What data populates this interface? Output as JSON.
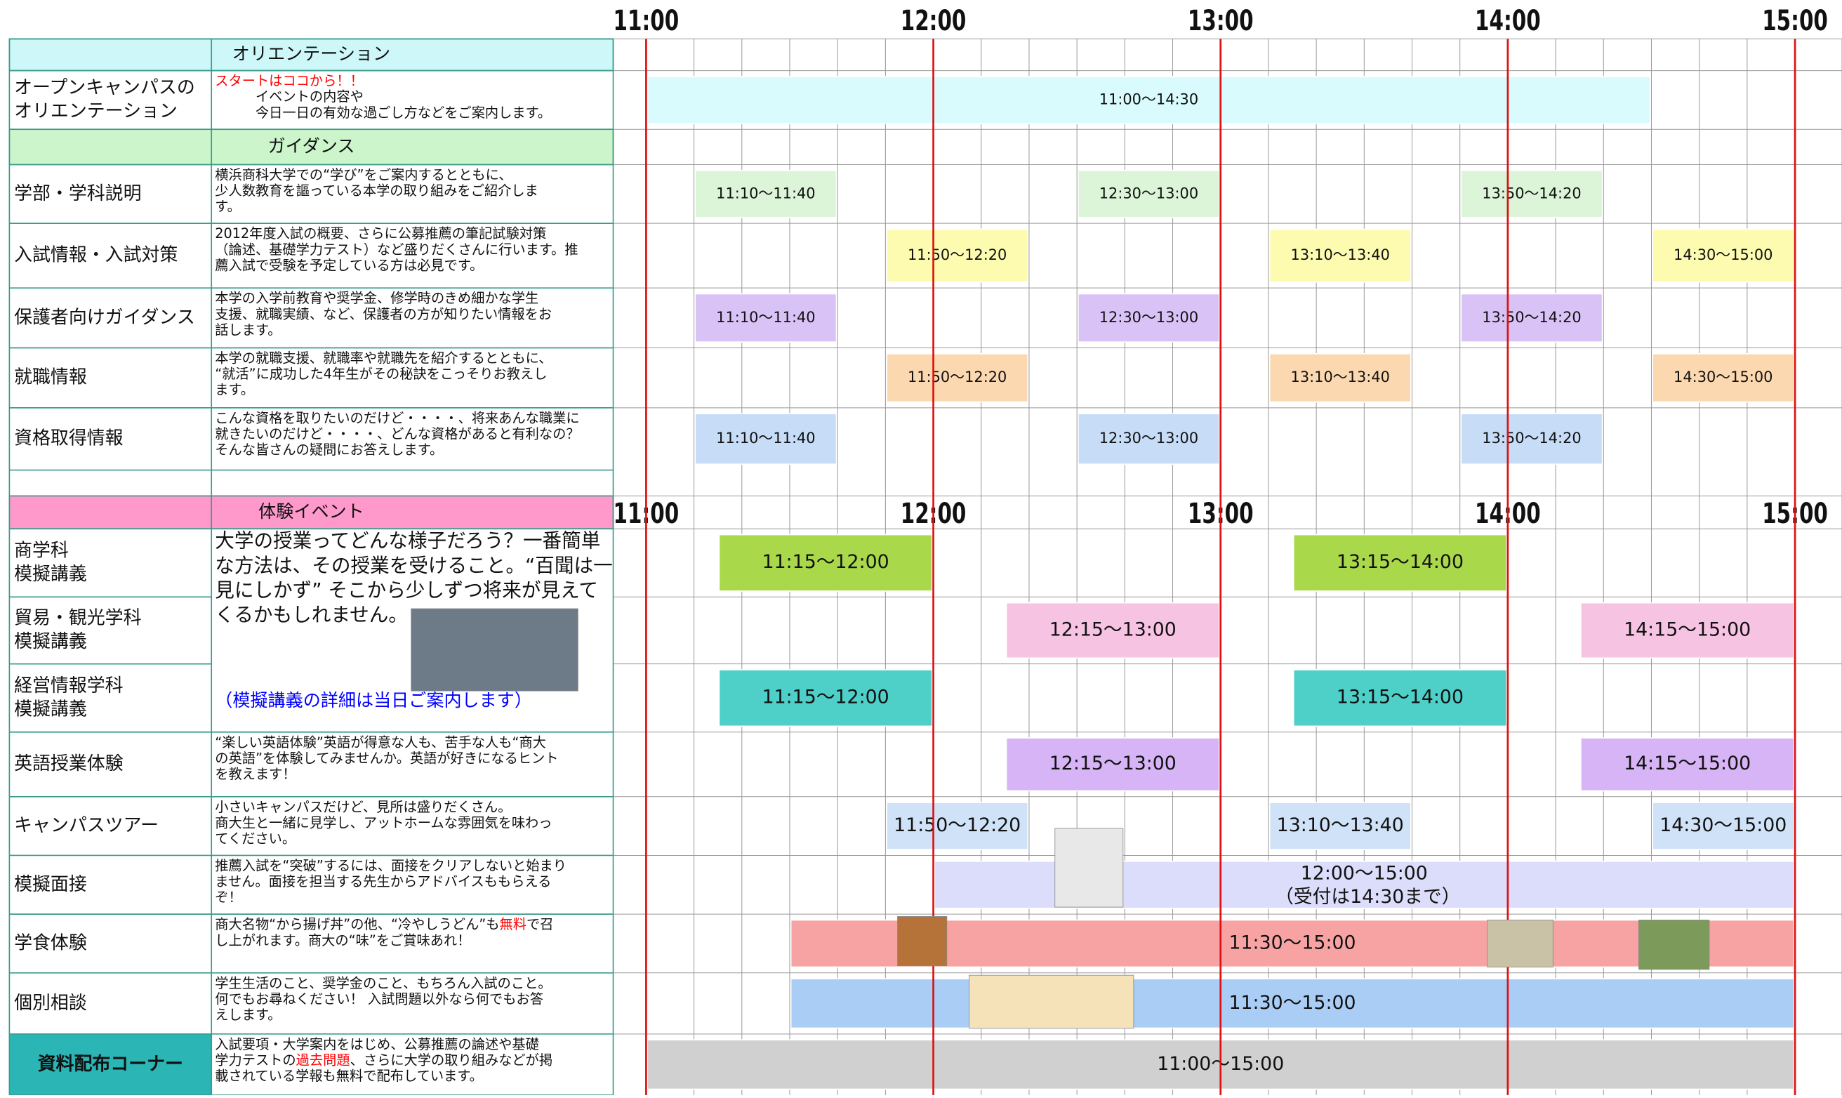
{
  "time_axis": [
    "11:00",
    "12:00",
    "13:00",
    "14:00",
    "15:00"
  ],
  "sections": [
    {
      "title": "オリエンテーション",
      "color": "#cdf7f9",
      "rows": [
        {
          "label": [
            "オープンキャンパスの",
            "オリエンテーション"
          ],
          "color": "#dafbfd",
          "description": [
            [
              {
                "text": "スタートはココから！！",
                "color": "#ff0000"
              }
            ],
            [
              {
                "text": "　　　イベントの内容や"
              }
            ],
            [
              {
                "text": "　　　今日一日の有効な過ごし方などをご案内します。"
              }
            ]
          ],
          "slots": [
            "11:00〜14:30"
          ]
        }
      ]
    },
    {
      "title": "ガイダンス",
      "color": "#ccf5cc",
      "rows": [
        {
          "label": [
            "学部・学科説明"
          ],
          "color": "#dcf5d8",
          "description": [
            [
              {
                "text": "横浜商科大学での“学び”をご案内するとともに、"
              }
            ],
            [
              {
                "text": "少人数教育を謳っている本学の取り組みをご紹介しま"
              }
            ],
            [
              {
                "text": "す。"
              }
            ]
          ],
          "slots": [
            "11:10〜11:40",
            "12:30〜13:00",
            "13:50〜14:20"
          ]
        },
        {
          "label": [
            "入試情報・入試対策"
          ],
          "color": "#fdfbb0",
          "description": [
            [
              {
                "text": "2012年度入試の概要、さらに公募推薦の筆記試験対策"
              }
            ],
            [
              {
                "text": "（論述、基礎学力テスト）など盛りだくさんに行います。推"
              }
            ],
            [
              {
                "text": "薦入試で受験を予定している方は必見です。"
              }
            ]
          ],
          "slots": [
            "11:50〜12:20",
            "13:10〜13:40",
            "14:30〜15:00"
          ]
        },
        {
          "label": [
            "保護者向けガイダンス"
          ],
          "color": "#d9c2f5",
          "description": [
            [
              {
                "text": "本学の入学前教育や奨学金、修学時のきめ細かな学生"
              }
            ],
            [
              {
                "text": "支援、就職実績、など、保護者の方が知りたい情報をお"
              }
            ],
            [
              {
                "text": "話します。"
              }
            ]
          ],
          "slots": [
            "11:10〜11:40",
            "12:30〜13:00",
            "13:50〜14:20"
          ]
        },
        {
          "label": [
            "就職情報"
          ],
          "color": "#fcd8b0",
          "description": [
            [
              {
                "text": "本学の就職支援、就職率や就職先を紹介するとともに、"
              }
            ],
            [
              {
                "text": "“就活”に成功した4年生がその秘訣をこっそりお教えし"
              }
            ],
            [
              {
                "text": "ます。"
              }
            ]
          ],
          "slots": [
            "11:50〜12:20",
            "13:10〜13:40",
            "14:30〜15:00"
          ]
        },
        {
          "label": [
            "資格取得情報"
          ],
          "color": "#c6dcf7",
          "description": [
            [
              {
                "text": "こんな資格を取りたいのだけど・・・・、将来あんな職業に"
              }
            ],
            [
              {
                "text": "就きたいのだけど・・・・、どんな資格があると有利なの？"
              }
            ],
            [
              {
                "text": "そんな皆さんの疑問にお答えします。"
              }
            ]
          ],
          "slots": [
            "11:10〜11:40",
            "12:30〜13:00",
            "13:50〜14:20"
          ]
        }
      ]
    },
    {
      "title": "体験イベント",
      "color": "#ff99cc",
      "rows": [
        {
          "label": [
            "商学科",
            "模擬講義"
          ],
          "color": "#a9d84a",
          "description": [
            [
              {
                "text": "大学の授業ってどんな様子だろう？一番簡単"
              }
            ],
            [
              {
                "text": "な方法は、その授業を受けること。“百聞は一"
              }
            ],
            [
              {
                "text": "見にしかず”  そこから少しずつ将来が見えて"
              }
            ],
            [
              {
                "text": "くるかもしれません。"
              }
            ]
          ],
          "note": [
            {
              "text": "（模擬講義の詳細は当日ご案内します）",
              "color": "#0000ff"
            }
          ],
          "slots": [
            "11:15〜12:00",
            "13:15〜14:00"
          ]
        },
        {
          "label": [
            "貿易・観光学科",
            "模擬講義"
          ],
          "color": "#f7c3e2",
          "slots": [
            "12:15〜13:00",
            "14:15〜15:00"
          ]
        },
        {
          "label": [
            "経営情報学科",
            "模擬講義"
          ],
          "color": "#4ecfc8",
          "slots": [
            "11:15〜12:00",
            "13:15〜14:00"
          ]
        },
        {
          "label": [
            "英語授業体験"
          ],
          "color": "#d6b4f5",
          "description": [
            [
              {
                "text": "“楽しい英語体験”英語が得意な人も、苦手な人も“商大"
              }
            ],
            [
              {
                "text": "の英語”を体験してみませんか。英語が好きになるヒント"
              }
            ],
            [
              {
                "text": "を教えます！"
              }
            ]
          ],
          "slots": [
            "12:15〜13:00",
            "14:15〜15:00"
          ]
        },
        {
          "label": [
            "キャンパスツアー"
          ],
          "color": "#cfe2f8",
          "description": [
            [
              {
                "text": "小さいキャンパスだけど、見所は盛りだくさん。"
              }
            ],
            [
              {
                "text": "商大生と一緒に見学し、アットホームな雰囲気を味わっ"
              }
            ],
            [
              {
                "text": "てください。"
              }
            ]
          ],
          "slots": [
            "11:50〜12:20",
            "13:10〜13:40",
            "14:30〜15:00"
          ]
        },
        {
          "label": [
            "模擬面接"
          ],
          "color": "#dcdcfb",
          "description": [
            [
              {
                "text": "推薦入試を“突破”するには、面接をクリアしないと始まり"
              }
            ],
            [
              {
                "text": "ません。面接を担当する先生からアドバイスももらえる"
              }
            ],
            [
              {
                "text": "ぞ！"
              }
            ]
          ],
          "slots": [
            "12:00〜15:00"
          ],
          "slot_note": {
            "text": "（受付は14:30まで）",
            "color": "#ff0000"
          }
        },
        {
          "label": [
            "学食体験"
          ],
          "color": "#f7a3a3",
          "description": [
            [
              {
                "text": "商大名物“から揚げ丼”の他、“冷やしうどん”も"
              },
              {
                "text": "無料",
                "color": "#ff0000"
              },
              {
                "text": "で召"
              }
            ],
            [
              {
                "text": "し上がれます。商大の“味”をご賞味あれ！"
              }
            ]
          ],
          "slots": [
            "11:30〜15:00"
          ]
        },
        {
          "label": [
            "個別相談"
          ],
          "color": "#a9cdf5",
          "description": [
            [
              {
                "text": "学生生活のこと、奨学金のこと、もちろん入試のこと。"
              }
            ],
            [
              {
                "text": "何でもお尋ねください！  入試問題以外なら何でもお答"
              }
            ],
            [
              {
                "text": "えします。"
              }
            ]
          ],
          "slots": [
            "11:30〜15:00"
          ]
        },
        {
          "label": [
            "資料配布コーナー"
          ],
          "label_color": "#2bb5b5",
          "color": "#d0d0d0",
          "description": [
            [
              {
                "text": "入試要項・大学案内をはじめ、公募推薦の論述や基礎"
              }
            ],
            [
              {
                "text": "学力テストの"
              },
              {
                "text": "過去問題",
                "color": "#ff0000"
              },
              {
                "text": "、さらに大学の取り組みなどが掲"
              }
            ],
            [
              {
                "text": "載されている学報も無料で配布しています。"
              }
            ]
          ],
          "slots": [
            "11:00〜15:00"
          ]
        }
      ]
    }
  ]
}
